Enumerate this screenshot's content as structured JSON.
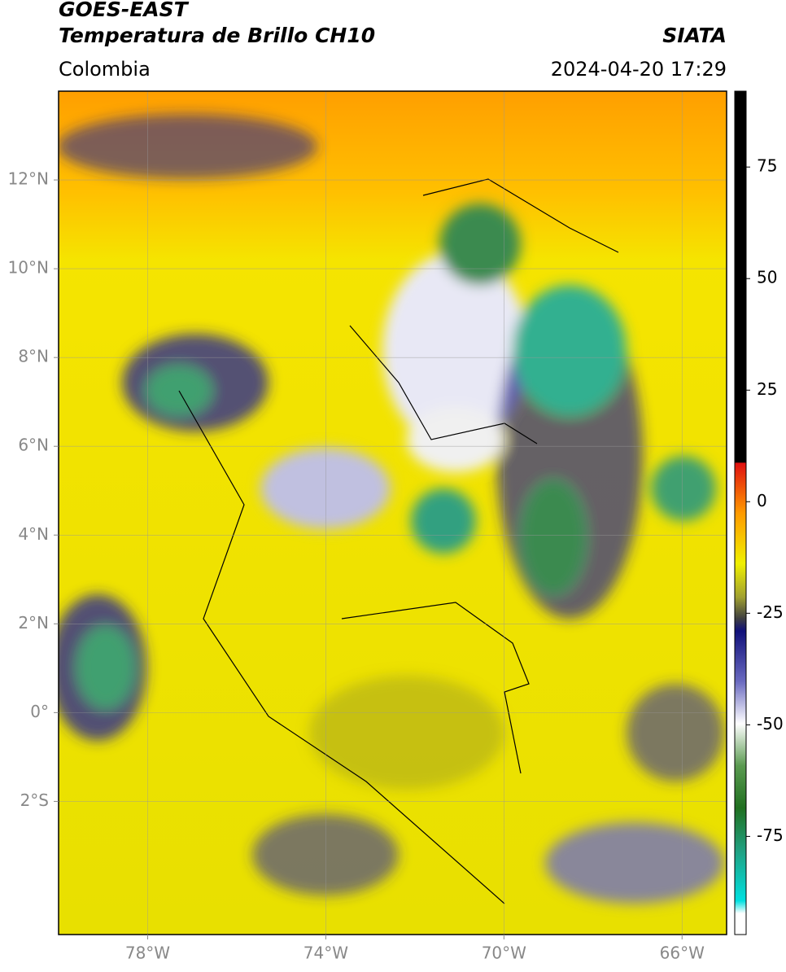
{
  "header": {
    "title": "GOES-EAST",
    "subtitle": "Temperatura de Brillo CH10",
    "source": "SIATA",
    "region": "Colombia",
    "datetime": "2024-04-20 17:29"
  },
  "map": {
    "xlim": [
      -80,
      -65
    ],
    "ylim": [
      -5,
      14
    ],
    "xticks": [
      {
        "value": -78,
        "label": "78°W"
      },
      {
        "value": -74,
        "label": "74°W"
      },
      {
        "value": -70,
        "label": "70°W"
      },
      {
        "value": -66,
        "label": "66°W"
      }
    ],
    "yticks": [
      {
        "value": 12,
        "label": "12°N"
      },
      {
        "value": 10,
        "label": "10°N"
      },
      {
        "value": 8,
        "label": "8°N"
      },
      {
        "value": 6,
        "label": "6°N"
      },
      {
        "value": 4,
        "label": "4°N"
      },
      {
        "value": 2,
        "label": "2°N"
      },
      {
        "value": 0,
        "label": "0°"
      },
      {
        "value": -2,
        "label": "2°S"
      }
    ],
    "grid": true
  },
  "colorbar": {
    "lim": [
      -97,
      92
    ],
    "ticks": [
      75,
      50,
      25,
      0,
      -25,
      -50,
      -75
    ]
  }
}
